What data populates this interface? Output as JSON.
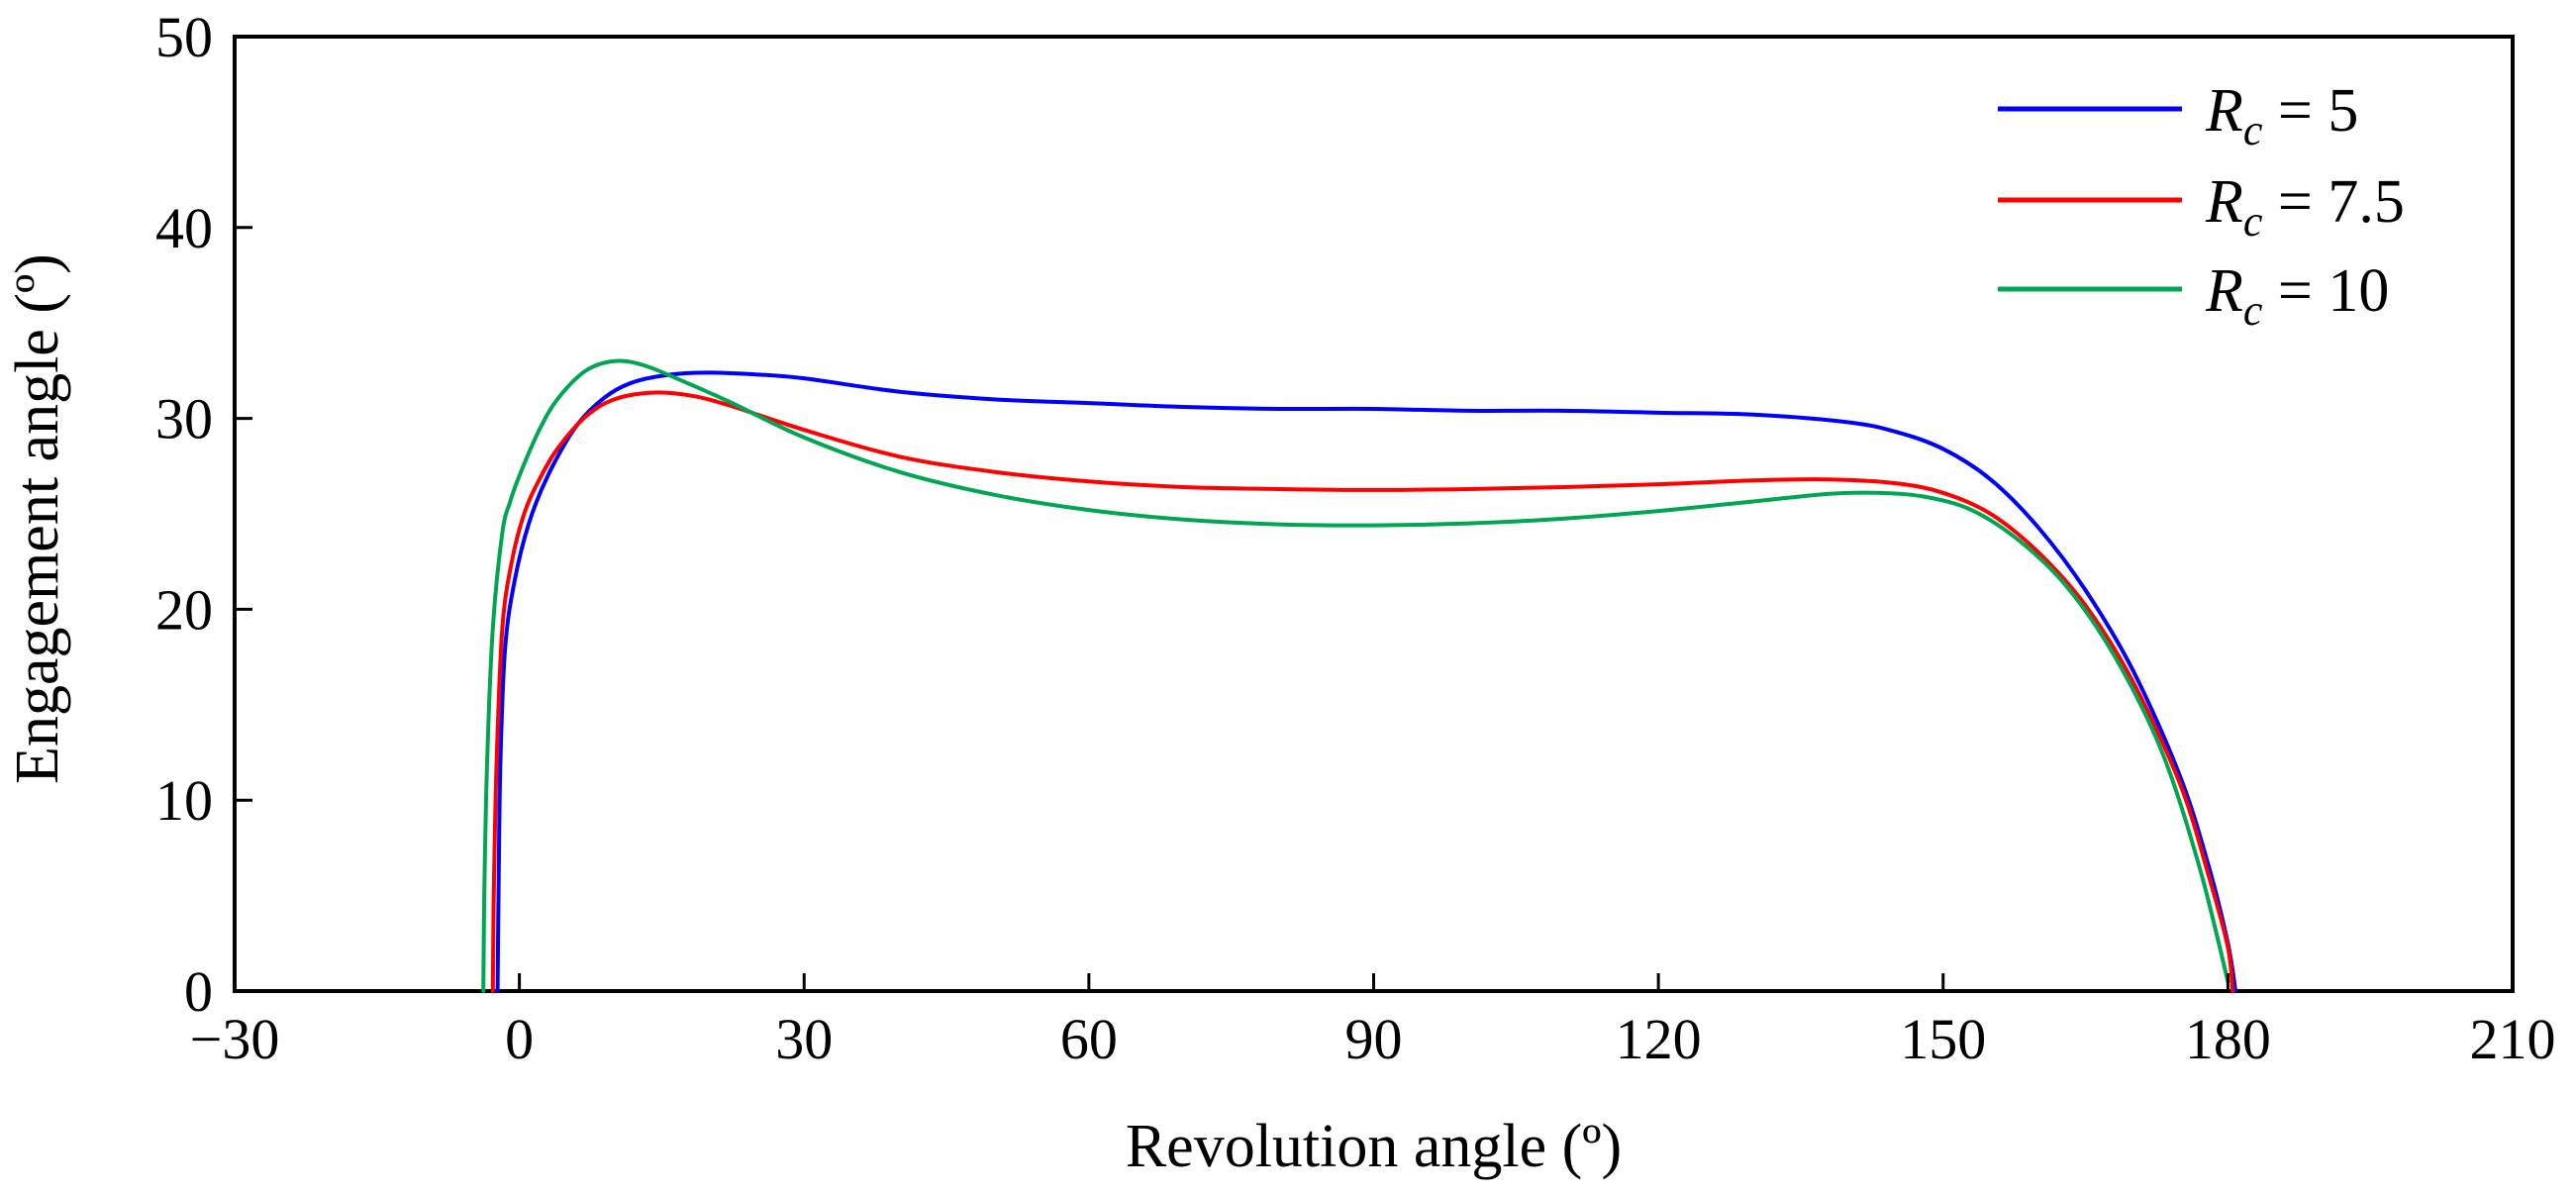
{
  "chart_data": {
    "type": "line",
    "title": "",
    "xlabel": "Revolution angle (º)",
    "ylabel": "Engagement angle (º)",
    "xlim": [
      -30,
      210
    ],
    "ylim": [
      0,
      50
    ],
    "xticks": [
      -30,
      0,
      30,
      60,
      90,
      120,
      150,
      180,
      210
    ],
    "yticks": [
      0,
      10,
      20,
      30,
      40,
      50
    ],
    "xtick_labels": [
      "−30",
      "0",
      "30",
      "60",
      "90",
      "120",
      "150",
      "180",
      "210"
    ],
    "ytick_labels": [
      "0",
      "10",
      "20",
      "30",
      "40",
      "50"
    ],
    "grid": false,
    "legend_position": "top-right",
    "series": [
      {
        "name": "Rc = 5",
        "legend_symbol": "R",
        "legend_subscript": "c",
        "legend_value": " = 5",
        "color": "#0000ff",
        "x": [
          -2.3,
          -2.2,
          -2.0,
          -1.5,
          -0.5,
          1,
          3,
          6,
          9,
          12,
          16,
          20,
          25,
          30,
          40,
          50,
          60,
          70,
          80,
          90,
          100,
          110,
          120,
          130,
          140,
          145,
          150,
          155,
          160,
          165,
          170,
          175,
          178,
          180,
          180.8
        ],
        "y": [
          0,
          5,
          12,
          18,
          21.5,
          24.5,
          27,
          29.6,
          31.1,
          31.9,
          32.3,
          32.4,
          32.3,
          32.1,
          31.4,
          31.0,
          30.8,
          30.6,
          30.5,
          30.5,
          30.4,
          30.4,
          30.3,
          30.2,
          29.8,
          29.3,
          28.4,
          26.8,
          24.3,
          21.0,
          16.8,
          11.2,
          6.5,
          2.5,
          0
        ]
      },
      {
        "name": "Rc = 7.5",
        "legend_symbol": "R",
        "legend_subscript": "c",
        "legend_value": " = 7.5",
        "color": "#ff0000",
        "x": [
          -2.8,
          -2.7,
          -2.4,
          -1.8,
          -0.8,
          0.5,
          2,
          4,
          7,
          10,
          14,
          18,
          22,
          30,
          40,
          50,
          60,
          70,
          80,
          90,
          100,
          110,
          120,
          130,
          138,
          145,
          150,
          155,
          160,
          165,
          170,
          175,
          178,
          180,
          180.5
        ],
        "y": [
          0,
          5,
          12,
          19,
          22.5,
          25.0,
          26.7,
          28.4,
          30.1,
          31.0,
          31.35,
          31.2,
          30.7,
          29.4,
          28.0,
          27.2,
          26.7,
          26.4,
          26.3,
          26.25,
          26.3,
          26.4,
          26.55,
          26.75,
          26.8,
          26.6,
          26.1,
          25.0,
          23.0,
          20.2,
          16.2,
          10.8,
          6.0,
          2.3,
          0
        ]
      },
      {
        "name": "Rc = 10",
        "legend_symbol": "R",
        "legend_subscript": "c",
        "legend_value": " = 10",
        "color": "#00a651",
        "x": [
          -3.8,
          -3.7,
          -3.4,
          -2.8,
          -1.8,
          -1.0,
          0,
          2,
          4,
          7,
          10,
          13,
          17,
          22,
          30,
          40,
          50,
          60,
          70,
          80,
          90,
          100,
          110,
          120,
          130,
          138,
          143,
          148,
          153,
          158,
          163,
          168,
          173,
          177,
          180
        ],
        "y": [
          0,
          5,
          12,
          19,
          24,
          25.6,
          27.0,
          29.3,
          31.0,
          32.5,
          33.0,
          32.8,
          32.0,
          30.9,
          29.0,
          27.2,
          26.0,
          25.2,
          24.7,
          24.45,
          24.4,
          24.5,
          24.75,
          25.15,
          25.65,
          26.05,
          26.1,
          25.9,
          25.2,
          23.6,
          21.2,
          17.6,
          12.6,
          6.5,
          0.5
        ]
      }
    ]
  }
}
